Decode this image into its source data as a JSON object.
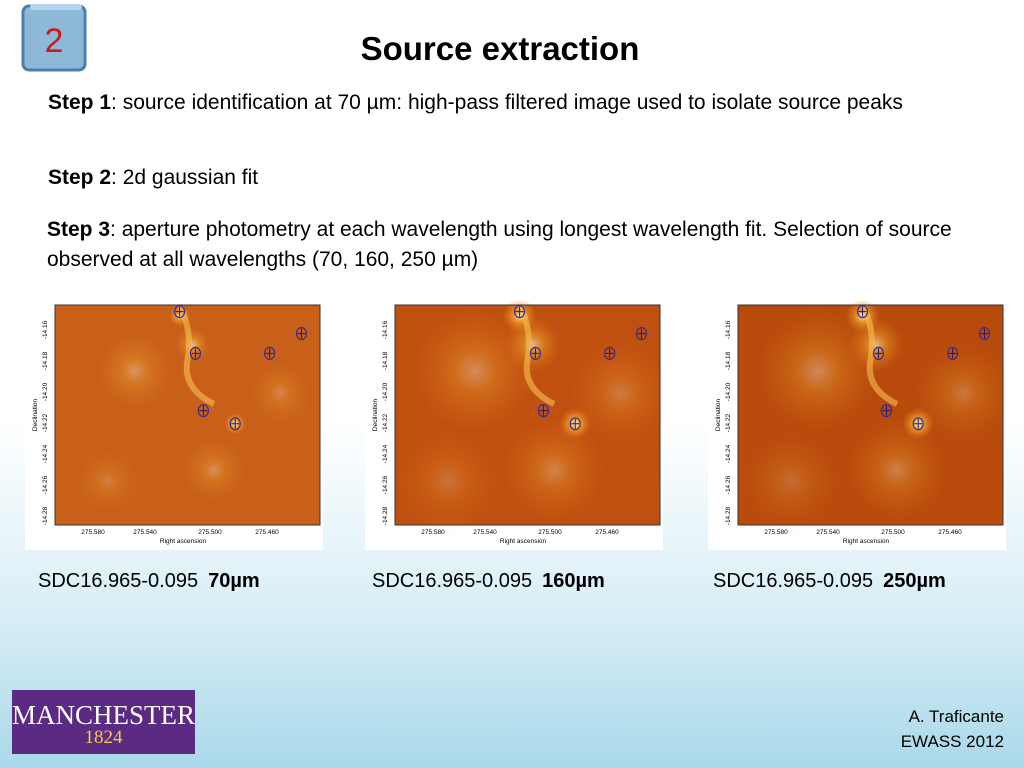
{
  "slide_number": "2",
  "title": "Source extraction",
  "steps": [
    {
      "label": "Step 1",
      "text": ": source identification at 70 µm: high-pass filtered image used to isolate source peaks"
    },
    {
      "label": "Step 2",
      "text": ": 2d gaussian fit"
    },
    {
      "label": "Step 3",
      "text": ": aperture photometry at each wavelength using longest wavelength fit. Selection of source observed at all wavelengths (70, 160, 250 µm)"
    }
  ],
  "map_axes": {
    "y_label": "Declination",
    "x_label": "Right ascension",
    "y_ticks": [
      "-14.16",
      "-14.18",
      "-14.20",
      "-14.22",
      "-14.24",
      "-14.26",
      "-14.28"
    ],
    "x_ticks": [
      "275.580",
      "275.540",
      "275.500",
      "275.460"
    ]
  },
  "panels": [
    {
      "caption": "SDC16.965-0.095",
      "band": "70µm"
    },
    {
      "caption": "SDC16.965-0.095",
      "band": "160µm"
    },
    {
      "caption": "SDC16.965-0.095",
      "band": "250µm"
    }
  ],
  "logo": {
    "name": "MANCHESTER",
    "year": "1824"
  },
  "footer": {
    "author": "A. Traficante",
    "event": "EWASS 2012"
  }
}
